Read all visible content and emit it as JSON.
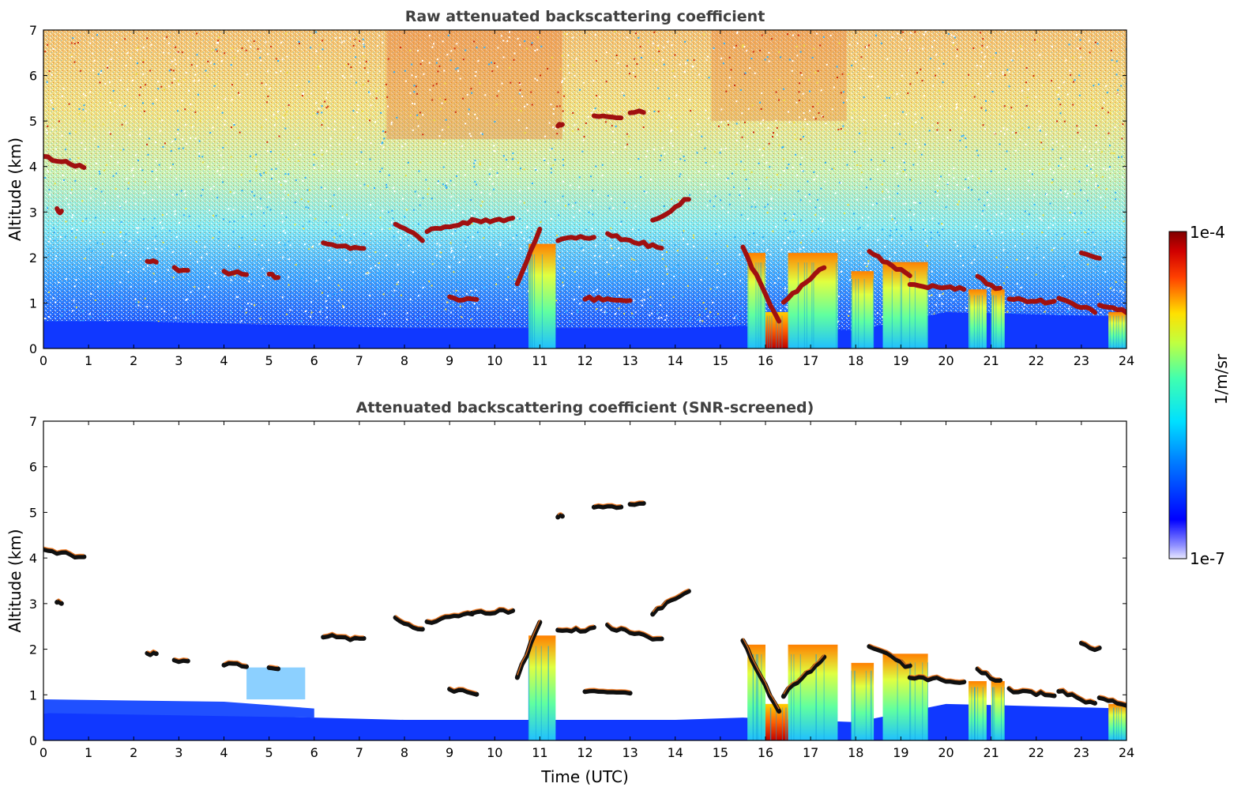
{
  "chart_data": [
    {
      "type": "heatmap",
      "title": "Raw attenuated backscattering coefficient",
      "xlabel": "",
      "ylabel": "Altitude (km)",
      "xlim": [
        0,
        24
      ],
      "ylim": [
        0,
        7
      ],
      "x_ticks": [
        "0",
        "1",
        "2",
        "3",
        "4",
        "5",
        "6",
        "7",
        "8",
        "9",
        "10",
        "11",
        "12",
        "13",
        "14",
        "15",
        "16",
        "17",
        "18",
        "19",
        "20",
        "21",
        "22",
        "23",
        "24"
      ],
      "y_ticks": [
        "0",
        "1",
        "2",
        "3",
        "4",
        "5",
        "6",
        "7"
      ],
      "screening": "none",
      "features": {
        "boundary_layer": [
          [
            0,
            0.6
          ],
          [
            2,
            0.6
          ],
          [
            4,
            0.55
          ],
          [
            6,
            0.5
          ],
          [
            8,
            0.45
          ],
          [
            10,
            0.45
          ],
          [
            12,
            0.45
          ],
          [
            14,
            0.45
          ],
          [
            15.5,
            0.5
          ],
          [
            18,
            0.4
          ],
          [
            20,
            0.8
          ],
          [
            22,
            0.75
          ],
          [
            24,
            0.7
          ]
        ],
        "cloud_layers": [
          {
            "x": [
              0.0,
              0.9
            ],
            "alt": [
              4.2,
              4.0
            ]
          },
          {
            "x": [
              0.3,
              0.4
            ],
            "alt": [
              3.05,
              3.0
            ]
          },
          {
            "x": [
              2.3,
              2.5
            ],
            "alt": [
              1.9,
              1.9
            ]
          },
          {
            "x": [
              2.9,
              3.2
            ],
            "alt": [
              1.75,
              1.72
            ]
          },
          {
            "x": [
              4.0,
              4.5
            ],
            "alt": [
              1.68,
              1.65
            ]
          },
          {
            "x": [
              5.0,
              5.2
            ],
            "alt": [
              1.6,
              1.58
            ]
          },
          {
            "x": [
              6.2,
              7.1
            ],
            "alt": [
              2.3,
              2.2
            ]
          },
          {
            "x": [
              7.8,
              8.4
            ],
            "alt": [
              2.7,
              2.4
            ]
          },
          {
            "x": [
              8.5,
              9.5
            ],
            "alt": [
              2.6,
              2.8
            ]
          },
          {
            "x": [
              9.5,
              10.4
            ],
            "alt": [
              2.8,
              2.85
            ]
          },
          {
            "x": [
              10.5,
              11.0
            ],
            "alt": [
              1.4,
              2.6
            ]
          },
          {
            "x": [
              11.4,
              12.2
            ],
            "alt": [
              2.4,
              2.45
            ]
          },
          {
            "x": [
              12.5,
              13.7
            ],
            "alt": [
              2.5,
              2.2
            ]
          },
          {
            "x": [
              13.5,
              14.3
            ],
            "alt": [
              2.8,
              3.3
            ]
          },
          {
            "x": [
              12.2,
              12.8
            ],
            "alt": [
              5.1,
              5.1
            ]
          },
          {
            "x": [
              13.0,
              13.3
            ],
            "alt": [
              5.2,
              5.2
            ]
          },
          {
            "x": [
              11.4,
              11.5
            ],
            "alt": [
              4.9,
              4.9
            ]
          },
          {
            "x": [
              15.5,
              16.3
            ],
            "alt": [
              2.2,
              0.6
            ]
          },
          {
            "x": [
              16.4,
              17.3
            ],
            "alt": [
              1.0,
              1.8
            ]
          },
          {
            "x": [
              18.3,
              19.2
            ],
            "alt": [
              2.1,
              1.6
            ]
          },
          {
            "x": [
              19.2,
              20.4
            ],
            "alt": [
              1.4,
              1.3
            ]
          },
          {
            "x": [
              20.7,
              21.2
            ],
            "alt": [
              1.55,
              1.3
            ]
          },
          {
            "x": [
              21.4,
              22.4
            ],
            "alt": [
              1.1,
              1.0
            ]
          },
          {
            "x": [
              22.5,
              23.3
            ],
            "alt": [
              1.1,
              0.8
            ]
          },
          {
            "x": [
              23.4,
              24.0
            ],
            "alt": [
              0.95,
              0.8
            ]
          },
          {
            "x": [
              23.0,
              23.4
            ],
            "alt": [
              2.1,
              2.0
            ]
          },
          {
            "x": [
              12.0,
              13.0
            ],
            "alt": [
              1.1,
              1.05
            ]
          },
          {
            "x": [
              9.0,
              9.6
            ],
            "alt": [
              1.1,
              1.05
            ]
          }
        ],
        "precipitation_shafts": [
          {
            "x": [
              10.75,
              11.35
            ],
            "alt_top": 2.3
          },
          {
            "x": [
              15.6,
              16.0
            ],
            "alt_top": 2.1
          },
          {
            "x": [
              16.0,
              16.5
            ],
            "alt_top": 0.8
          },
          {
            "x": [
              16.5,
              17.6
            ],
            "alt_top": 2.1
          },
          {
            "x": [
              17.9,
              18.4
            ],
            "alt_top": 1.7
          },
          {
            "x": [
              18.6,
              19.6
            ],
            "alt_top": 1.9
          },
          {
            "x": [
              20.5,
              20.9
            ],
            "alt_top": 1.3
          },
          {
            "x": [
              21.0,
              21.3
            ],
            "alt_top": 1.3
          },
          {
            "x": [
              23.6,
              24.0
            ],
            "alt_top": 0.8
          }
        ]
      }
    },
    {
      "type": "heatmap",
      "title": "Attenuated backscattering coefficient (SNR-screened)",
      "xlabel": "Time (UTC)",
      "ylabel": "Altitude (km)",
      "xlim": [
        0,
        24
      ],
      "ylim": [
        0,
        7
      ],
      "x_ticks": [
        "0",
        "1",
        "2",
        "3",
        "4",
        "5",
        "6",
        "7",
        "8",
        "9",
        "10",
        "11",
        "12",
        "13",
        "14",
        "15",
        "16",
        "17",
        "18",
        "19",
        "20",
        "21",
        "22",
        "23",
        "24"
      ],
      "y_ticks": [
        "0",
        "1",
        "2",
        "3",
        "4",
        "5",
        "6",
        "7"
      ],
      "screening": "SNR",
      "features": "same cloud layers as raw panel; background noise removed above boundary layer"
    }
  ],
  "colorbar": {
    "label": "1/m/sr",
    "max_label": "1e-4",
    "min_label": "1e-7",
    "scale": "log",
    "colormap": "jet"
  },
  "colors": {
    "low": "#0000ff",
    "mid": "#00ffff",
    "high": "#ffff00",
    "peak": "#800000"
  }
}
